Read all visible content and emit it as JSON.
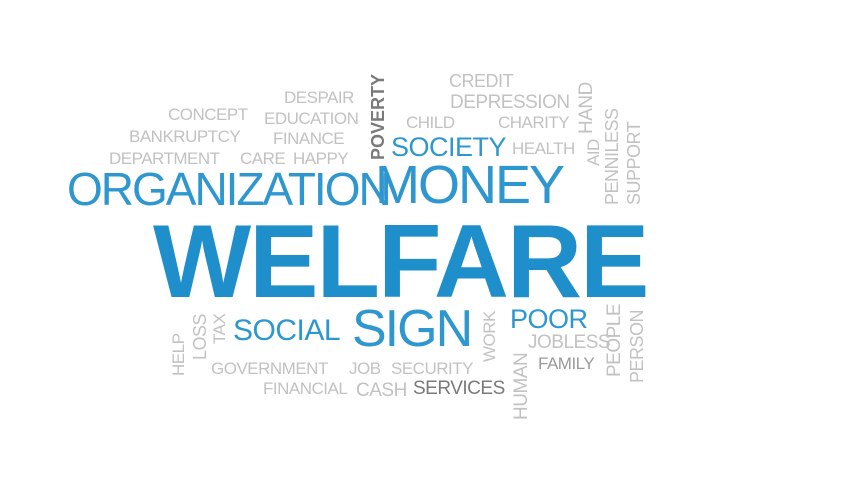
{
  "cloud": {
    "main_word": "WELFARE",
    "colors": {
      "main": "#1f8fcc",
      "blue": "#2f97cf",
      "light_gray": "#c2c2c2",
      "mid_gray": "#9a9a9a",
      "dark_gray": "#7a7a7a",
      "background": "#ffffff"
    },
    "words": {
      "organization": "ORGANIZATION",
      "money": "MONEY",
      "social": "SOCIAL",
      "sign": "SIGN",
      "poor": "POOR",
      "society": "SOCIETY",
      "poverty": "POVERTY",
      "concept": "CONCEPT",
      "despair": "DESPAIR",
      "education": "EDUCATION",
      "bankruptcy": "BANKRUPTCY",
      "finance": "FINANCE",
      "department": "DEPARTMENT",
      "care": "CARE",
      "happy": "HAPPY",
      "credit": "CREDIT",
      "depression": "DEPRESSION",
      "child": "CHILD",
      "charity": "CHARITY",
      "health": "HEALTH",
      "hand": "HAND",
      "aid": "AID",
      "penniless": "PENNILESS",
      "support": "SUPPORT",
      "help": "HELP",
      "loss": "LOSS",
      "tax": "TAX",
      "government": "GOVERNMENT",
      "job": "JOB",
      "security": "SECURITY",
      "financial": "FINANCIAL",
      "cash": "CASH",
      "services": "SERVICES",
      "work": "WORK",
      "human": "HUMAN",
      "jobless": "JOBLESS",
      "family": "FAMILY",
      "people": "PEOPLE",
      "person": "PERSON"
    }
  }
}
